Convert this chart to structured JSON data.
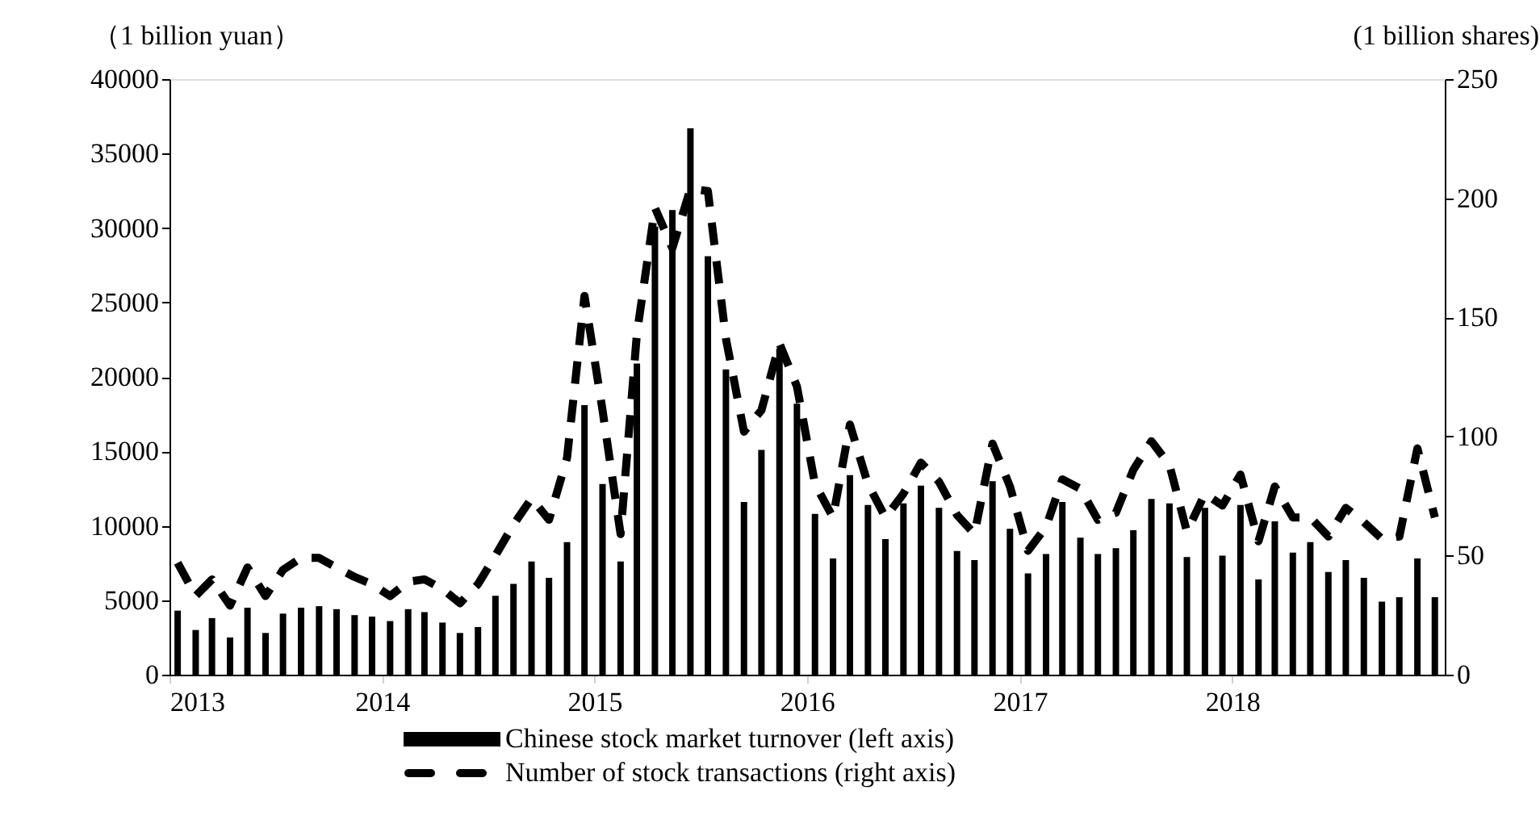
{
  "chart_data": {
    "type": "bar",
    "x": [
      "2013-01-15",
      "2013-02-15",
      "2013-03-15",
      "2013-04-15",
      "2013-05-15",
      "2013-06-15",
      "2013-07-15",
      "2013-08-15",
      "2013-09-15",
      "2013-10-15",
      "2013-11-15",
      "2013-12-15",
      "2014-01-15",
      "2014-02-15",
      "2014-03-15",
      "2014-04-15",
      "2014-05-15",
      "2014-06-15",
      "2014-07-15",
      "2014-08-15",
      "2014-09-15",
      "2014-10-15",
      "2014-11-15",
      "2014-12-15",
      "2015-01-15",
      "2015-02-15",
      "2015-03-15",
      "2015-04-15",
      "2015-05-15",
      "2015-06-15",
      "2015-07-15",
      "2015-08-15",
      "2015-09-15",
      "2015-10-15",
      "2015-11-15",
      "2015-12-15",
      "2016-01-15",
      "2016-02-15",
      "2016-03-15",
      "2016-04-15",
      "2016-05-15",
      "2016-06-15",
      "2016-07-15",
      "2016-08-15",
      "2016-09-15",
      "2016-10-15",
      "2016-11-15",
      "2016-12-15",
      "2017-01-15",
      "2017-02-15",
      "2017-03-15",
      "2017-04-15",
      "2017-05-15",
      "2017-06-15",
      "2017-07-15",
      "2017-08-15",
      "2017-09-15",
      "2017-10-15",
      "2017-11-15",
      "2017-12-15",
      "2018-01-15",
      "2018-02-15",
      "2018-03-15",
      "2018-04-15",
      "2018-05-15",
      "2018-06-15",
      "2018-07-15",
      "2018-08-15",
      "2018-09-15",
      "2018-10-15",
      "2018-11-15",
      "2018-12-15"
    ],
    "series": [
      {
        "name": "Chinese stock market turnover (left axis)",
        "color": "#000000",
        "values": [
          4300,
          3000,
          3800,
          2500,
          4500,
          2800,
          4100,
          4500,
          4600,
          4400,
          4000,
          3900,
          3600,
          4400,
          4200,
          3500,
          2800,
          3200,
          5300,
          6100,
          7600,
          6500,
          8900,
          18100,
          12800,
          7600,
          20900,
          30100,
          31200,
          36700,
          28100,
          20500,
          11600,
          15100,
          21900,
          18200,
          10800,
          7800,
          13400,
          11400,
          9100,
          11500,
          12700,
          11200,
          8300,
          7700,
          13000,
          9800,
          6800,
          8100,
          11600,
          9200,
          8100,
          8500,
          9700,
          11800,
          11500,
          7900,
          11200,
          8000,
          11400,
          6400,
          10300,
          8200,
          8900,
          6900,
          7700,
          6500,
          4900,
          5200,
          7800,
          5200
        ]
      },
      {
        "name": "Number of stock transactions (right axis)",
        "type": "line",
        "axis": "y2",
        "line_style": "dashed",
        "color": "#000000",
        "values": [
          47,
          33,
          40,
          29,
          45,
          33,
          44,
          49,
          49,
          45,
          41,
          38,
          33,
          39,
          40,
          36,
          30,
          38,
          50,
          63,
          74,
          65,
          91,
          159,
          111,
          59,
          143,
          196,
          179,
          204,
          203,
          141,
          102,
          111,
          139,
          121,
          80,
          66,
          105,
          80,
          66,
          76,
          89,
          81,
          67,
          59,
          97,
          79,
          52,
          62,
          82,
          78,
          65,
          68,
          86,
          98,
          88,
          60,
          76,
          71,
          84,
          56,
          79,
          66,
          66,
          58,
          70,
          64,
          57,
          58,
          95,
          66
        ]
      }
    ],
    "ylabel": "（1 billion yuan）",
    "y2label": "(1 billion shares)",
    "xlim": [
      "2013-01-01",
      "2019-01-01"
    ],
    "xticks": [
      "2013",
      "2014",
      "2015",
      "2016",
      "2017",
      "2018"
    ],
    "ylim": [
      0,
      40000
    ],
    "yticks": [
      0,
      5000,
      10000,
      15000,
      20000,
      25000,
      30000,
      35000,
      40000
    ],
    "y2lim": [
      0,
      250
    ],
    "y2ticks": [
      0,
      50,
      100,
      150,
      200,
      250
    ],
    "legend": "bottom",
    "grid": false,
    "marker": "none"
  }
}
